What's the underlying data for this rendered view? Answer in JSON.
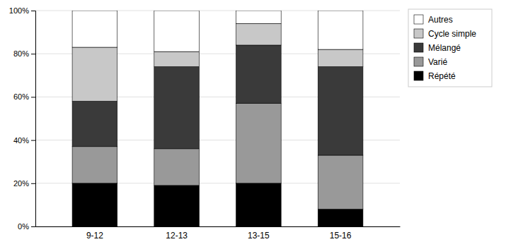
{
  "chart_data": {
    "type": "bar",
    "stacked": true,
    "categories": [
      "9-12",
      "12-13",
      "13-15",
      "15-16"
    ],
    "series": [
      {
        "name": "Répété",
        "color": "#000000",
        "values": [
          20,
          19,
          20,
          8
        ]
      },
      {
        "name": "Varié",
        "color": "#999999",
        "values": [
          17,
          17,
          37,
          25
        ]
      },
      {
        "name": "Mélangé",
        "color": "#3a3a3a",
        "values": [
          21,
          38,
          27,
          41
        ]
      },
      {
        "name": "Cycle simple",
        "color": "#c8c8c8",
        "values": [
          25,
          7,
          10,
          8
        ]
      },
      {
        "name": "Autres",
        "color": "#ffffff",
        "values": [
          17,
          19,
          6,
          18
        ]
      }
    ],
    "ylim": [
      0,
      100
    ],
    "yticks": [
      {
        "value": 0,
        "label": "0%"
      },
      {
        "value": 20,
        "label": "20%"
      },
      {
        "value": 40,
        "label": "40%"
      },
      {
        "value": 60,
        "label": "60%"
      },
      {
        "value": 80,
        "label": "80%"
      },
      {
        "value": 100,
        "label": "100%"
      }
    ],
    "grid": true,
    "legend": "right"
  }
}
